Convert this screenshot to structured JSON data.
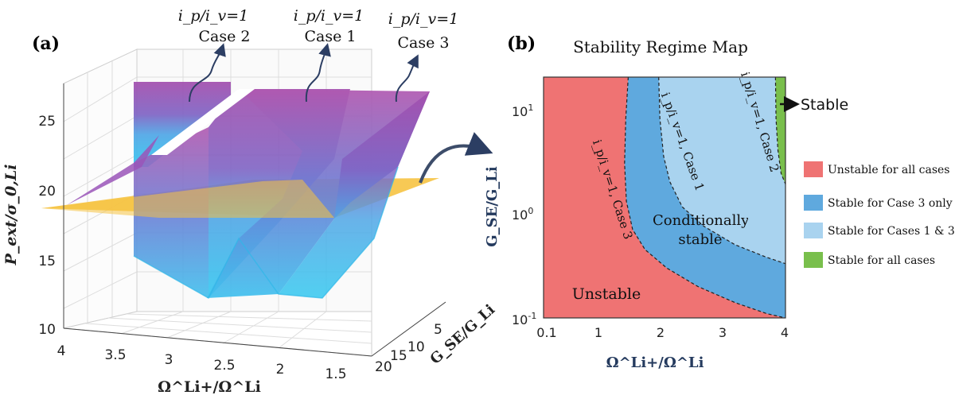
{
  "chart_data": [
    {
      "panel_label": "(a)",
      "type": "surface3d",
      "zlabel": "P_ext/σ_0,Li",
      "xlabel": "Ω^Li+/Ω^Li",
      "ylabel": "G_SE/G_Li",
      "z_ticks": [
        "10",
        "15",
        "20",
        "25"
      ],
      "x_ticks": [
        "4",
        "3.5",
        "3",
        "2.5",
        "2",
        "1.5"
      ],
      "y_ticks": [
        "5",
        "10",
        "15",
        "20"
      ],
      "zlim": [
        10,
        27
      ],
      "plane_z": 20,
      "annotations": [
        {
          "ratio": "i_p/i_v=1",
          "case": "Case 2"
        },
        {
          "ratio": "i_p/i_v=1",
          "case": "Case 1"
        },
        {
          "ratio": "i_p/i_v=1",
          "case": "Case 3"
        }
      ],
      "colors": {
        "surface_top": "#a24dad",
        "surface_bottom": "#33c8f0",
        "plane": "#f6c342"
      }
    },
    {
      "panel_label": "(b)",
      "type": "region_map",
      "title": "Stability Regime Map",
      "xlabel": "Ω^Li+/Ω^Li",
      "ylabel": "G_SE/G_Li",
      "xlim": [
        0.1,
        4
      ],
      "ylim": [
        0.1,
        20
      ],
      "x_ticks": [
        "0.1",
        "1",
        "2",
        "3",
        "4"
      ],
      "y_ticks": [
        "10^-1",
        "10^0",
        "10^1"
      ],
      "boundaries": [
        {
          "label": "i_p/i_v=1, Case 3",
          "x": [
            1.48,
            1.44,
            1.42,
            1.45,
            1.55,
            1.75,
            2.1,
            2.6,
            3.2,
            3.7,
            4.0
          ],
          "y": [
            20,
            8,
            3,
            1.3,
            0.7,
            0.45,
            0.3,
            0.2,
            0.14,
            0.11,
            0.1
          ]
        },
        {
          "label": "i_p/i_v=1, Case 1",
          "x": [
            1.97,
            1.99,
            2.05,
            2.15,
            2.35,
            2.7,
            3.2,
            3.7,
            4.0
          ],
          "y": [
            20,
            8,
            3.5,
            2,
            1.15,
            0.75,
            0.5,
            0.38,
            0.33
          ]
        },
        {
          "label": "i_p/i_v=1, Case 2",
          "x": [
            3.84,
            3.85,
            3.88,
            3.93,
            4.0
          ],
          "y": [
            20,
            8,
            4,
            2.4,
            1.9
          ]
        }
      ],
      "legend": [
        {
          "label": "Unstable for all cases",
          "color": "#ef7373"
        },
        {
          "label": "Stable for Case 3 only",
          "color": "#5fa9de"
        },
        {
          "label": "Stable for Cases 1 & 3",
          "color": "#a9d3ef"
        },
        {
          "label": "Stable for all cases",
          "color": "#79bf4c"
        }
      ],
      "region_labels": {
        "unstable": "Unstable",
        "conditional": "Conditionally stable",
        "stable": "Stable"
      }
    }
  ]
}
